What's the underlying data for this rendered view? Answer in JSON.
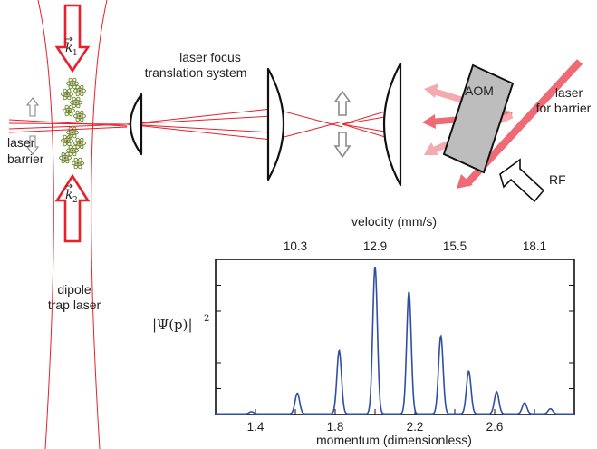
{
  "labels": {
    "translation_line1": "laser focus",
    "translation_line2": "translation system",
    "barrier_left_line1": "laser",
    "barrier_left_line2": "barrier",
    "dipole_line1": "dipole",
    "dipole_line2": "trap laser",
    "aom": "AOM",
    "laser_right_line1": "laser",
    "laser_right_line2": "for barrier",
    "rf": "RF",
    "k1_letter": "k",
    "k1_sub": "1",
    "k2_letter": "k",
    "k2_sub": "2"
  },
  "colors": {
    "laser_red": "#e8202a",
    "beam_pink": "#ee6a74",
    "beam_light": "#f4aaae",
    "aom_gray": "#bdbdbd",
    "curve_blue": "#2e4fa3",
    "atom_green": "#6a8a2a"
  },
  "chart_data": {
    "type": "line",
    "xlabel": "momentum (dimensionless)",
    "top_xlabel": "velocity (mm/s)",
    "ylabel_main": "|Ψ(p)|",
    "ylabel_exp": "2",
    "xlim": [
      1.2,
      3.0
    ],
    "ylim": [
      0,
      1.05
    ],
    "x_ticks": [
      "1.4",
      "1.8",
      "2.2",
      "2.6"
    ],
    "x_tick_values": [
      1.4,
      1.8,
      2.2,
      2.6
    ],
    "top_ticks": [
      "10.3",
      "12.9",
      "15.5",
      "18.1"
    ],
    "top_tick_positions": [
      1.6,
      2.0,
      2.4,
      2.8
    ],
    "grid": false,
    "peak_width": 0.0115,
    "series": [
      {
        "peaks": [
          {
            "x": 1.38,
            "y": 0.015
          },
          {
            "x": 1.61,
            "y": 0.14
          },
          {
            "x": 1.82,
            "y": 0.43
          },
          {
            "x": 2.0,
            "y": 1.0
          },
          {
            "x": 2.17,
            "y": 0.83
          },
          {
            "x": 2.33,
            "y": 0.53
          },
          {
            "x": 2.47,
            "y": 0.29
          },
          {
            "x": 2.61,
            "y": 0.15
          },
          {
            "x": 2.75,
            "y": 0.075
          },
          {
            "x": 2.88,
            "y": 0.035
          }
        ]
      }
    ]
  }
}
